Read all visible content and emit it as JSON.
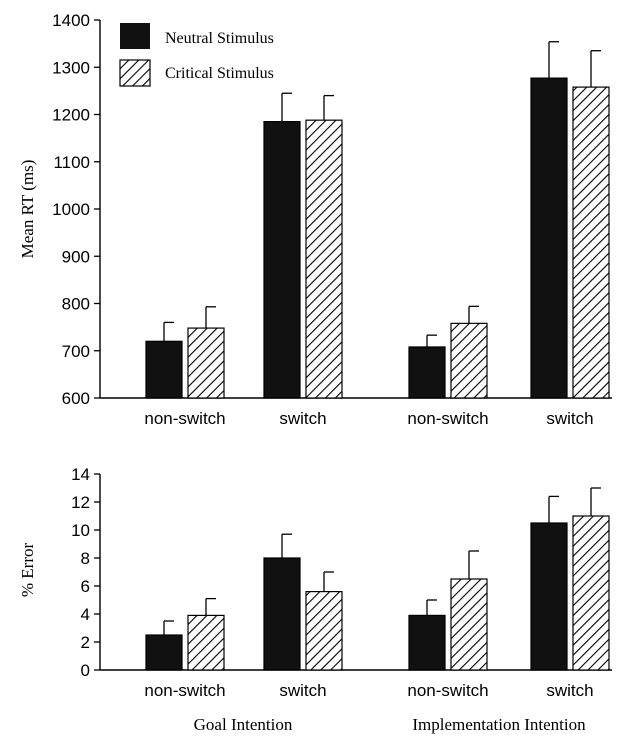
{
  "chart_data": [
    {
      "type": "bar",
      "ylabel": "Mean RT (ms)",
      "ylim": [
        600,
        1400
      ],
      "yticks": [
        600,
        700,
        800,
        900,
        1000,
        1100,
        1200,
        1300,
        1400
      ],
      "categories": [
        "non-switch",
        "switch",
        "non-switch",
        "switch"
      ],
      "groups": [
        "Goal Intention",
        "Implementation Intention"
      ],
      "series": [
        {
          "name": "Neutral Stimulus",
          "values": [
            720,
            1185,
            708,
            1277
          ],
          "errors": [
            40,
            60,
            25,
            77
          ]
        },
        {
          "name": "Critical Stimulus",
          "values": [
            748,
            1188,
            758,
            1258
          ],
          "errors": [
            45,
            52,
            36,
            77
          ]
        }
      ],
      "legend": {
        "placement": "top-left"
      }
    },
    {
      "type": "bar",
      "ylabel": "% Error",
      "ylim": [
        0,
        14
      ],
      "yticks": [
        0,
        2,
        4,
        6,
        8,
        10,
        12,
        14
      ],
      "categories": [
        "non-switch",
        "switch",
        "non-switch",
        "switch"
      ],
      "groups": [
        "Goal Intention",
        "Implementation Intention"
      ],
      "series": [
        {
          "name": "Neutral Stimulus",
          "values": [
            2.5,
            8.0,
            3.9,
            10.5
          ],
          "errors": [
            1.0,
            1.7,
            1.1,
            1.9
          ]
        },
        {
          "name": "Critical Stimulus",
          "values": [
            3.9,
            5.6,
            6.5,
            11.0
          ],
          "errors": [
            1.2,
            1.4,
            2.0,
            2.0
          ]
        }
      ]
    }
  ],
  "colors": {
    "neutral_fill": "#111111",
    "axis": "#000000"
  }
}
